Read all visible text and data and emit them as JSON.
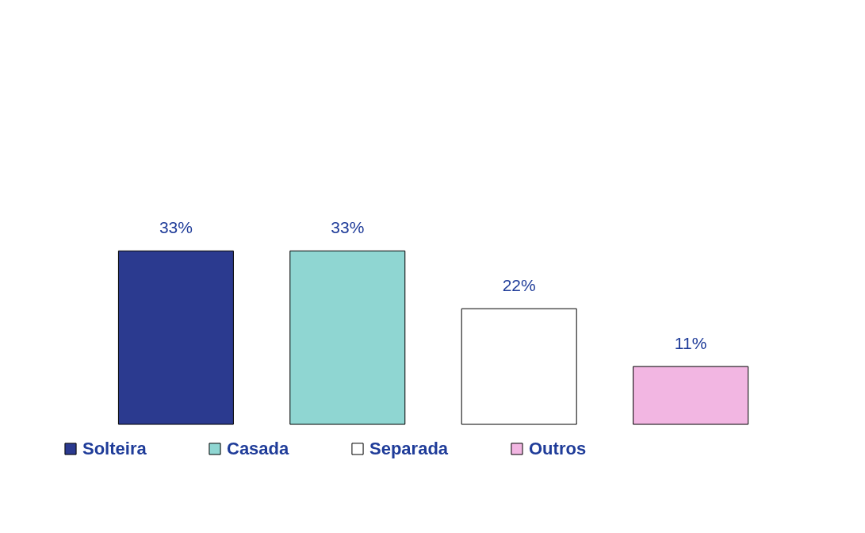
{
  "chart_data": {
    "type": "bar",
    "categories": [
      null,
      null,
      null,
      null
    ],
    "stacked": true,
    "series": [
      {
        "name": "Solteira",
        "color": "#2b3a8f",
        "values": [
          33,
          null,
          null,
          null
        ],
        "value_labels": [
          "33%",
          null,
          null,
          null
        ]
      },
      {
        "name": "Casada",
        "color": "#8fd6d2",
        "values": [
          null,
          33,
          null,
          null
        ],
        "value_labels": [
          null,
          "33%",
          null,
          null
        ]
      },
      {
        "name": "Separada",
        "color": "#ffffff",
        "values": [
          null,
          null,
          22,
          null
        ],
        "value_labels": [
          null,
          null,
          "22%",
          null
        ]
      },
      {
        "name": "Outros",
        "color": "#f2b6e2",
        "values": [
          null,
          null,
          null,
          11
        ],
        "value_labels": [
          null,
          null,
          null,
          "11%"
        ]
      }
    ],
    "legend": "bottom"
  }
}
